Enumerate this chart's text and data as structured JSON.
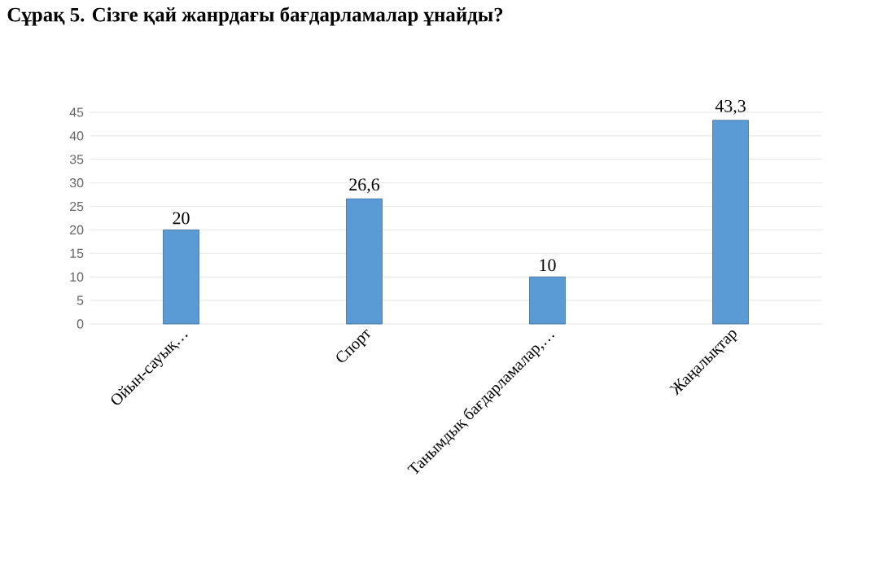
{
  "chart_data": {
    "type": "bar",
    "title": "Сұрақ 5. Сізге қай жанрдағы  бағдарламалар ұнайды?",
    "categories": [
      "Ойын-сауық…",
      "Спорт",
      "Танымдық бағдарламалар,…",
      "Жаңалықтар"
    ],
    "values": [
      20,
      26.6,
      10,
      43.3
    ],
    "value_labels": [
      "20",
      "26,6",
      "10",
      "43,3"
    ],
    "color": "#5b9bd5",
    "ylim": [
      0,
      45
    ],
    "yticks": [
      0,
      5,
      10,
      15,
      20,
      25,
      30,
      35,
      40,
      45
    ],
    "grid": "y"
  }
}
